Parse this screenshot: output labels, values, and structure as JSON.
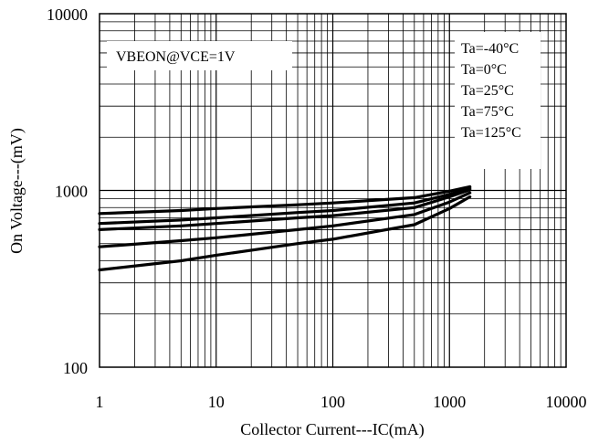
{
  "chart_data": {
    "type": "line",
    "title": "",
    "xlabel": "Collector Current---IC(mA)",
    "ylabel": "On Voltage---(mV)",
    "xscale": "log",
    "yscale": "log",
    "xlim": [
      1,
      10000
    ],
    "ylim": [
      100,
      10000
    ],
    "x_ticks": [
      "1",
      "10",
      "100",
      "1000",
      "10000"
    ],
    "y_ticks": [
      "100",
      "1000",
      "10000"
    ],
    "grid": true,
    "annotation": "VBEON@VCE=1V",
    "legend_position": "top-right",
    "legend_entries": [
      "Ta=-40°C",
      "Ta=0°C",
      "Ta=25°C",
      "Ta=75°C",
      "Ta=125°C"
    ],
    "series": [
      {
        "name": "Ta=-40°C",
        "x": [
          1,
          5,
          10,
          50,
          100,
          500,
          1000,
          1500
        ],
        "y": [
          740,
          770,
          790,
          830,
          850,
          910,
          990,
          1050
        ]
      },
      {
        "name": "Ta=0°C",
        "x": [
          1,
          5,
          10,
          50,
          100,
          500,
          1000,
          1500
        ],
        "y": [
          650,
          680,
          700,
          750,
          770,
          850,
          950,
          1030
        ]
      },
      {
        "name": "Ta=25°C",
        "x": [
          1,
          5,
          10,
          50,
          100,
          500,
          1000,
          1500
        ],
        "y": [
          600,
          630,
          650,
          700,
          720,
          800,
          920,
          1010
        ]
      },
      {
        "name": "Ta=75°C",
        "x": [
          1,
          5,
          10,
          50,
          100,
          500,
          1000,
          1500
        ],
        "y": [
          480,
          520,
          540,
          600,
          630,
          730,
          860,
          970
        ]
      },
      {
        "name": "Ta=125°C",
        "x": [
          1,
          5,
          10,
          50,
          100,
          500,
          1000,
          1500
        ],
        "y": [
          355,
          400,
          430,
          500,
          530,
          640,
          790,
          920
        ]
      }
    ]
  }
}
